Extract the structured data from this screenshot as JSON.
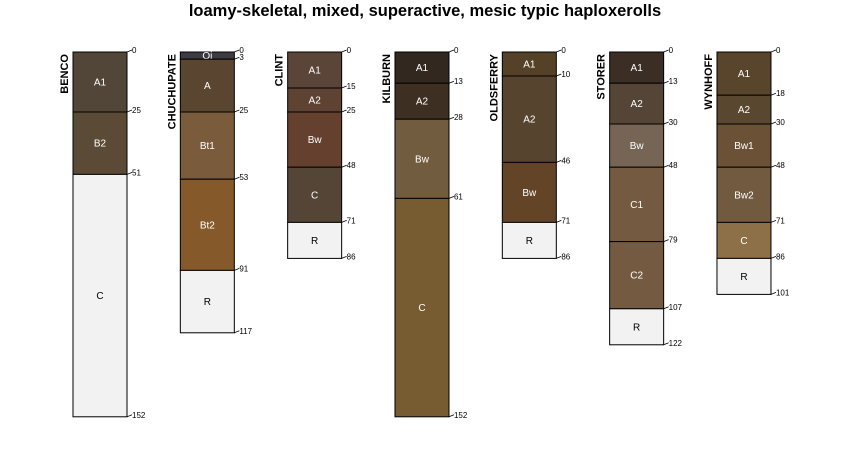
{
  "title": "loamy-skeletal, mixed, superactive, mesic typic haploxerolls",
  "depth_unit": "cm",
  "profiles": [
    {
      "name": "BENCO",
      "horizons": [
        {
          "name": "A1",
          "top": 0,
          "bottom": 25,
          "color": "#524639"
        },
        {
          "name": "B2",
          "top": 25,
          "bottom": 51,
          "color": "#5b4a36"
        },
        {
          "name": "C",
          "top": 51,
          "bottom": 152,
          "color": "#f2f2f2"
        }
      ]
    },
    {
      "name": "CHUCHUPATE",
      "horizons": [
        {
          "name": "Oi",
          "top": 0,
          "bottom": 3,
          "color": "#3c3a42"
        },
        {
          "name": "A",
          "top": 3,
          "bottom": 25,
          "color": "#5a4530"
        },
        {
          "name": "Bt1",
          "top": 25,
          "bottom": 53,
          "color": "#7a5b3c"
        },
        {
          "name": "Bt2",
          "top": 53,
          "bottom": 91,
          "color": "#85592a"
        },
        {
          "name": "R",
          "top": 91,
          "bottom": 117,
          "color": "#f2f2f2"
        }
      ]
    },
    {
      "name": "CLINT",
      "horizons": [
        {
          "name": "A1",
          "top": 0,
          "bottom": 15,
          "color": "#5b4538"
        },
        {
          "name": "A2",
          "top": 15,
          "bottom": 25,
          "color": "#5e4232"
        },
        {
          "name": "Bw",
          "top": 25,
          "bottom": 48,
          "color": "#66402e"
        },
        {
          "name": "C",
          "top": 48,
          "bottom": 71,
          "color": "#544537"
        },
        {
          "name": "R",
          "top": 71,
          "bottom": 86,
          "color": "#f2f2f2"
        }
      ]
    },
    {
      "name": "KILBURN",
      "horizons": [
        {
          "name": "A1",
          "top": 0,
          "bottom": 13,
          "color": "#33281f"
        },
        {
          "name": "A2",
          "top": 13,
          "bottom": 28,
          "color": "#3d2f22"
        },
        {
          "name": "Bw",
          "top": 28,
          "bottom": 61,
          "color": "#715c3f"
        },
        {
          "name": "C",
          "top": 61,
          "bottom": 152,
          "color": "#775c32"
        }
      ]
    },
    {
      "name": "OLDSFERRY",
      "horizons": [
        {
          "name": "A1",
          "top": 0,
          "bottom": 10,
          "color": "#554128"
        },
        {
          "name": "A2",
          "top": 10,
          "bottom": 46,
          "color": "#56442e"
        },
        {
          "name": "Bw",
          "top": 46,
          "bottom": 71,
          "color": "#634426"
        },
        {
          "name": "R",
          "top": 71,
          "bottom": 86,
          "color": "#f2f2f2"
        }
      ]
    },
    {
      "name": "STORER",
      "horizons": [
        {
          "name": "A1",
          "top": 0,
          "bottom": 13,
          "color": "#3b2e25"
        },
        {
          "name": "A2",
          "top": 13,
          "bottom": 30,
          "color": "#554536"
        },
        {
          "name": "Bw",
          "top": 30,
          "bottom": 48,
          "color": "#766555"
        },
        {
          "name": "C1",
          "top": 48,
          "bottom": 79,
          "color": "#735a40"
        },
        {
          "name": "C2",
          "top": 79,
          "bottom": 107,
          "color": "#735a40"
        },
        {
          "name": "R",
          "top": 107,
          "bottom": 122,
          "color": "#f2f2f2"
        }
      ]
    },
    {
      "name": "WYNHOFF",
      "horizons": [
        {
          "name": "A1",
          "top": 0,
          "bottom": 18,
          "color": "#58452c"
        },
        {
          "name": "A2",
          "top": 18,
          "bottom": 30,
          "color": "#5a472f"
        },
        {
          "name": "Bw1",
          "top": 30,
          "bottom": 48,
          "color": "#6b5236"
        },
        {
          "name": "Bw2",
          "top": 48,
          "bottom": 71,
          "color": "#715a40"
        },
        {
          "name": "C",
          "top": 71,
          "bottom": 86,
          "color": "#8e7048"
        },
        {
          "name": "R",
          "top": 86,
          "bottom": 101,
          "color": "#f2f2f2"
        }
      ]
    }
  ]
}
